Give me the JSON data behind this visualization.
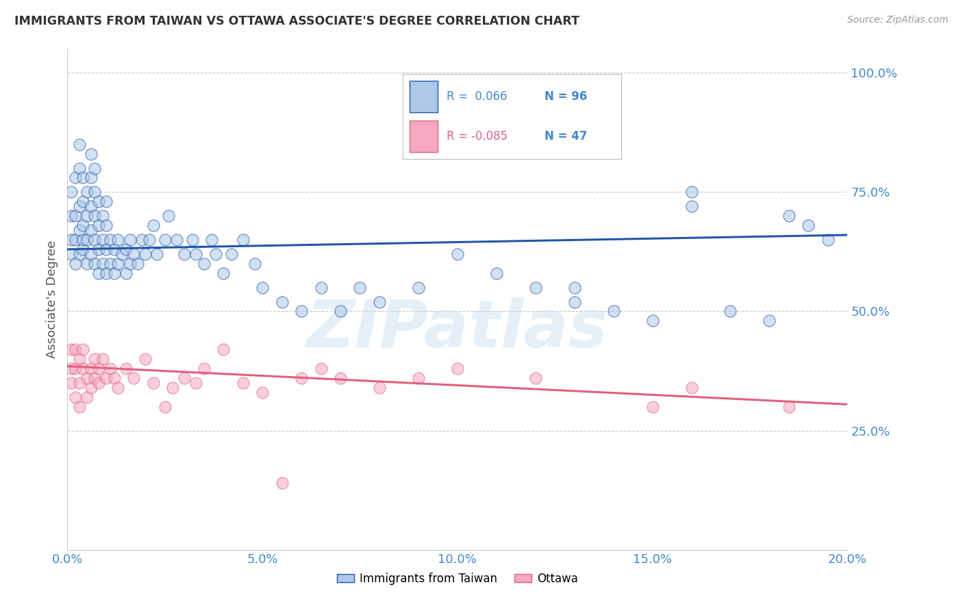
{
  "title": "IMMIGRANTS FROM TAIWAN VS OTTAWA ASSOCIATE'S DEGREE CORRELATION CHART",
  "source": "Source: ZipAtlas.com",
  "ylabel": "Associate's Degree",
  "watermark": "ZIPatlas",
  "blue_label": "Immigrants from Taiwan",
  "pink_label": "Ottawa",
  "blue_R": 0.066,
  "blue_N": 96,
  "pink_R": -0.085,
  "pink_N": 47,
  "blue_color": "#adc8e8",
  "blue_line_color": "#2255aa",
  "pink_color": "#f5a8c0",
  "pink_line_color": "#e06080",
  "axis_label_color": "#4488cc",
  "title_color": "#333333",
  "grid_color": "#bbbbbb",
  "background_color": "#ffffff",
  "xlim": [
    0.0,
    0.2
  ],
  "ylim": [
    0.0,
    1.05
  ],
  "yticks": [
    0.25,
    0.5,
    0.75,
    1.0
  ],
  "xticks": [
    0.0,
    0.05,
    0.1,
    0.15,
    0.2
  ],
  "blue_scatter_x": [
    0.001,
    0.001,
    0.001,
    0.001,
    0.002,
    0.002,
    0.002,
    0.002,
    0.003,
    0.003,
    0.003,
    0.003,
    0.003,
    0.004,
    0.004,
    0.004,
    0.004,
    0.004,
    0.005,
    0.005,
    0.005,
    0.005,
    0.006,
    0.006,
    0.006,
    0.006,
    0.006,
    0.007,
    0.007,
    0.007,
    0.007,
    0.007,
    0.008,
    0.008,
    0.008,
    0.008,
    0.009,
    0.009,
    0.009,
    0.01,
    0.01,
    0.01,
    0.01,
    0.011,
    0.011,
    0.012,
    0.012,
    0.013,
    0.013,
    0.014,
    0.015,
    0.015,
    0.016,
    0.016,
    0.017,
    0.018,
    0.019,
    0.02,
    0.021,
    0.022,
    0.023,
    0.025,
    0.026,
    0.028,
    0.03,
    0.032,
    0.033,
    0.035,
    0.037,
    0.038,
    0.04,
    0.042,
    0.045,
    0.048,
    0.05,
    0.055,
    0.06,
    0.065,
    0.07,
    0.075,
    0.08,
    0.09,
    0.1,
    0.11,
    0.12,
    0.13,
    0.14,
    0.15,
    0.16,
    0.17,
    0.18,
    0.185,
    0.19,
    0.195,
    0.13,
    0.16
  ],
  "blue_scatter_y": [
    0.62,
    0.65,
    0.7,
    0.75,
    0.6,
    0.65,
    0.7,
    0.78,
    0.62,
    0.67,
    0.72,
    0.8,
    0.85,
    0.63,
    0.68,
    0.73,
    0.78,
    0.65,
    0.6,
    0.65,
    0.7,
    0.75,
    0.62,
    0.67,
    0.72,
    0.78,
    0.83,
    0.6,
    0.65,
    0.7,
    0.75,
    0.8,
    0.58,
    0.63,
    0.68,
    0.73,
    0.6,
    0.65,
    0.7,
    0.58,
    0.63,
    0.68,
    0.73,
    0.6,
    0.65,
    0.58,
    0.63,
    0.6,
    0.65,
    0.62,
    0.58,
    0.63,
    0.6,
    0.65,
    0.62,
    0.6,
    0.65,
    0.62,
    0.65,
    0.68,
    0.62,
    0.65,
    0.7,
    0.65,
    0.62,
    0.65,
    0.62,
    0.6,
    0.65,
    0.62,
    0.58,
    0.62,
    0.65,
    0.6,
    0.55,
    0.52,
    0.5,
    0.55,
    0.5,
    0.55,
    0.52,
    0.55,
    0.62,
    0.58,
    0.55,
    0.52,
    0.5,
    0.48,
    0.75,
    0.5,
    0.48,
    0.7,
    0.68,
    0.65,
    0.55,
    0.72
  ],
  "pink_scatter_x": [
    0.001,
    0.001,
    0.001,
    0.002,
    0.002,
    0.002,
    0.003,
    0.003,
    0.003,
    0.004,
    0.004,
    0.005,
    0.005,
    0.006,
    0.006,
    0.007,
    0.007,
    0.008,
    0.008,
    0.009,
    0.01,
    0.011,
    0.012,
    0.013,
    0.015,
    0.017,
    0.02,
    0.022,
    0.025,
    0.027,
    0.03,
    0.033,
    0.035,
    0.04,
    0.045,
    0.05,
    0.055,
    0.06,
    0.065,
    0.07,
    0.08,
    0.09,
    0.1,
    0.12,
    0.15,
    0.16,
    0.185
  ],
  "pink_scatter_y": [
    0.42,
    0.38,
    0.35,
    0.42,
    0.38,
    0.32,
    0.4,
    0.35,
    0.3,
    0.38,
    0.42,
    0.36,
    0.32,
    0.38,
    0.34,
    0.36,
    0.4,
    0.35,
    0.38,
    0.4,
    0.36,
    0.38,
    0.36,
    0.34,
    0.38,
    0.36,
    0.4,
    0.35,
    0.3,
    0.34,
    0.36,
    0.35,
    0.38,
    0.42,
    0.35,
    0.33,
    0.14,
    0.36,
    0.38,
    0.36,
    0.34,
    0.36,
    0.38,
    0.36,
    0.3,
    0.34,
    0.3
  ],
  "blue_trend_x": [
    0.0,
    0.2
  ],
  "blue_trend_y": [
    0.63,
    0.66
  ],
  "pink_trend_x": [
    0.0,
    0.2
  ],
  "pink_trend_y": [
    0.385,
    0.305
  ],
  "figsize": [
    14.06,
    8.92
  ],
  "dpi": 100
}
